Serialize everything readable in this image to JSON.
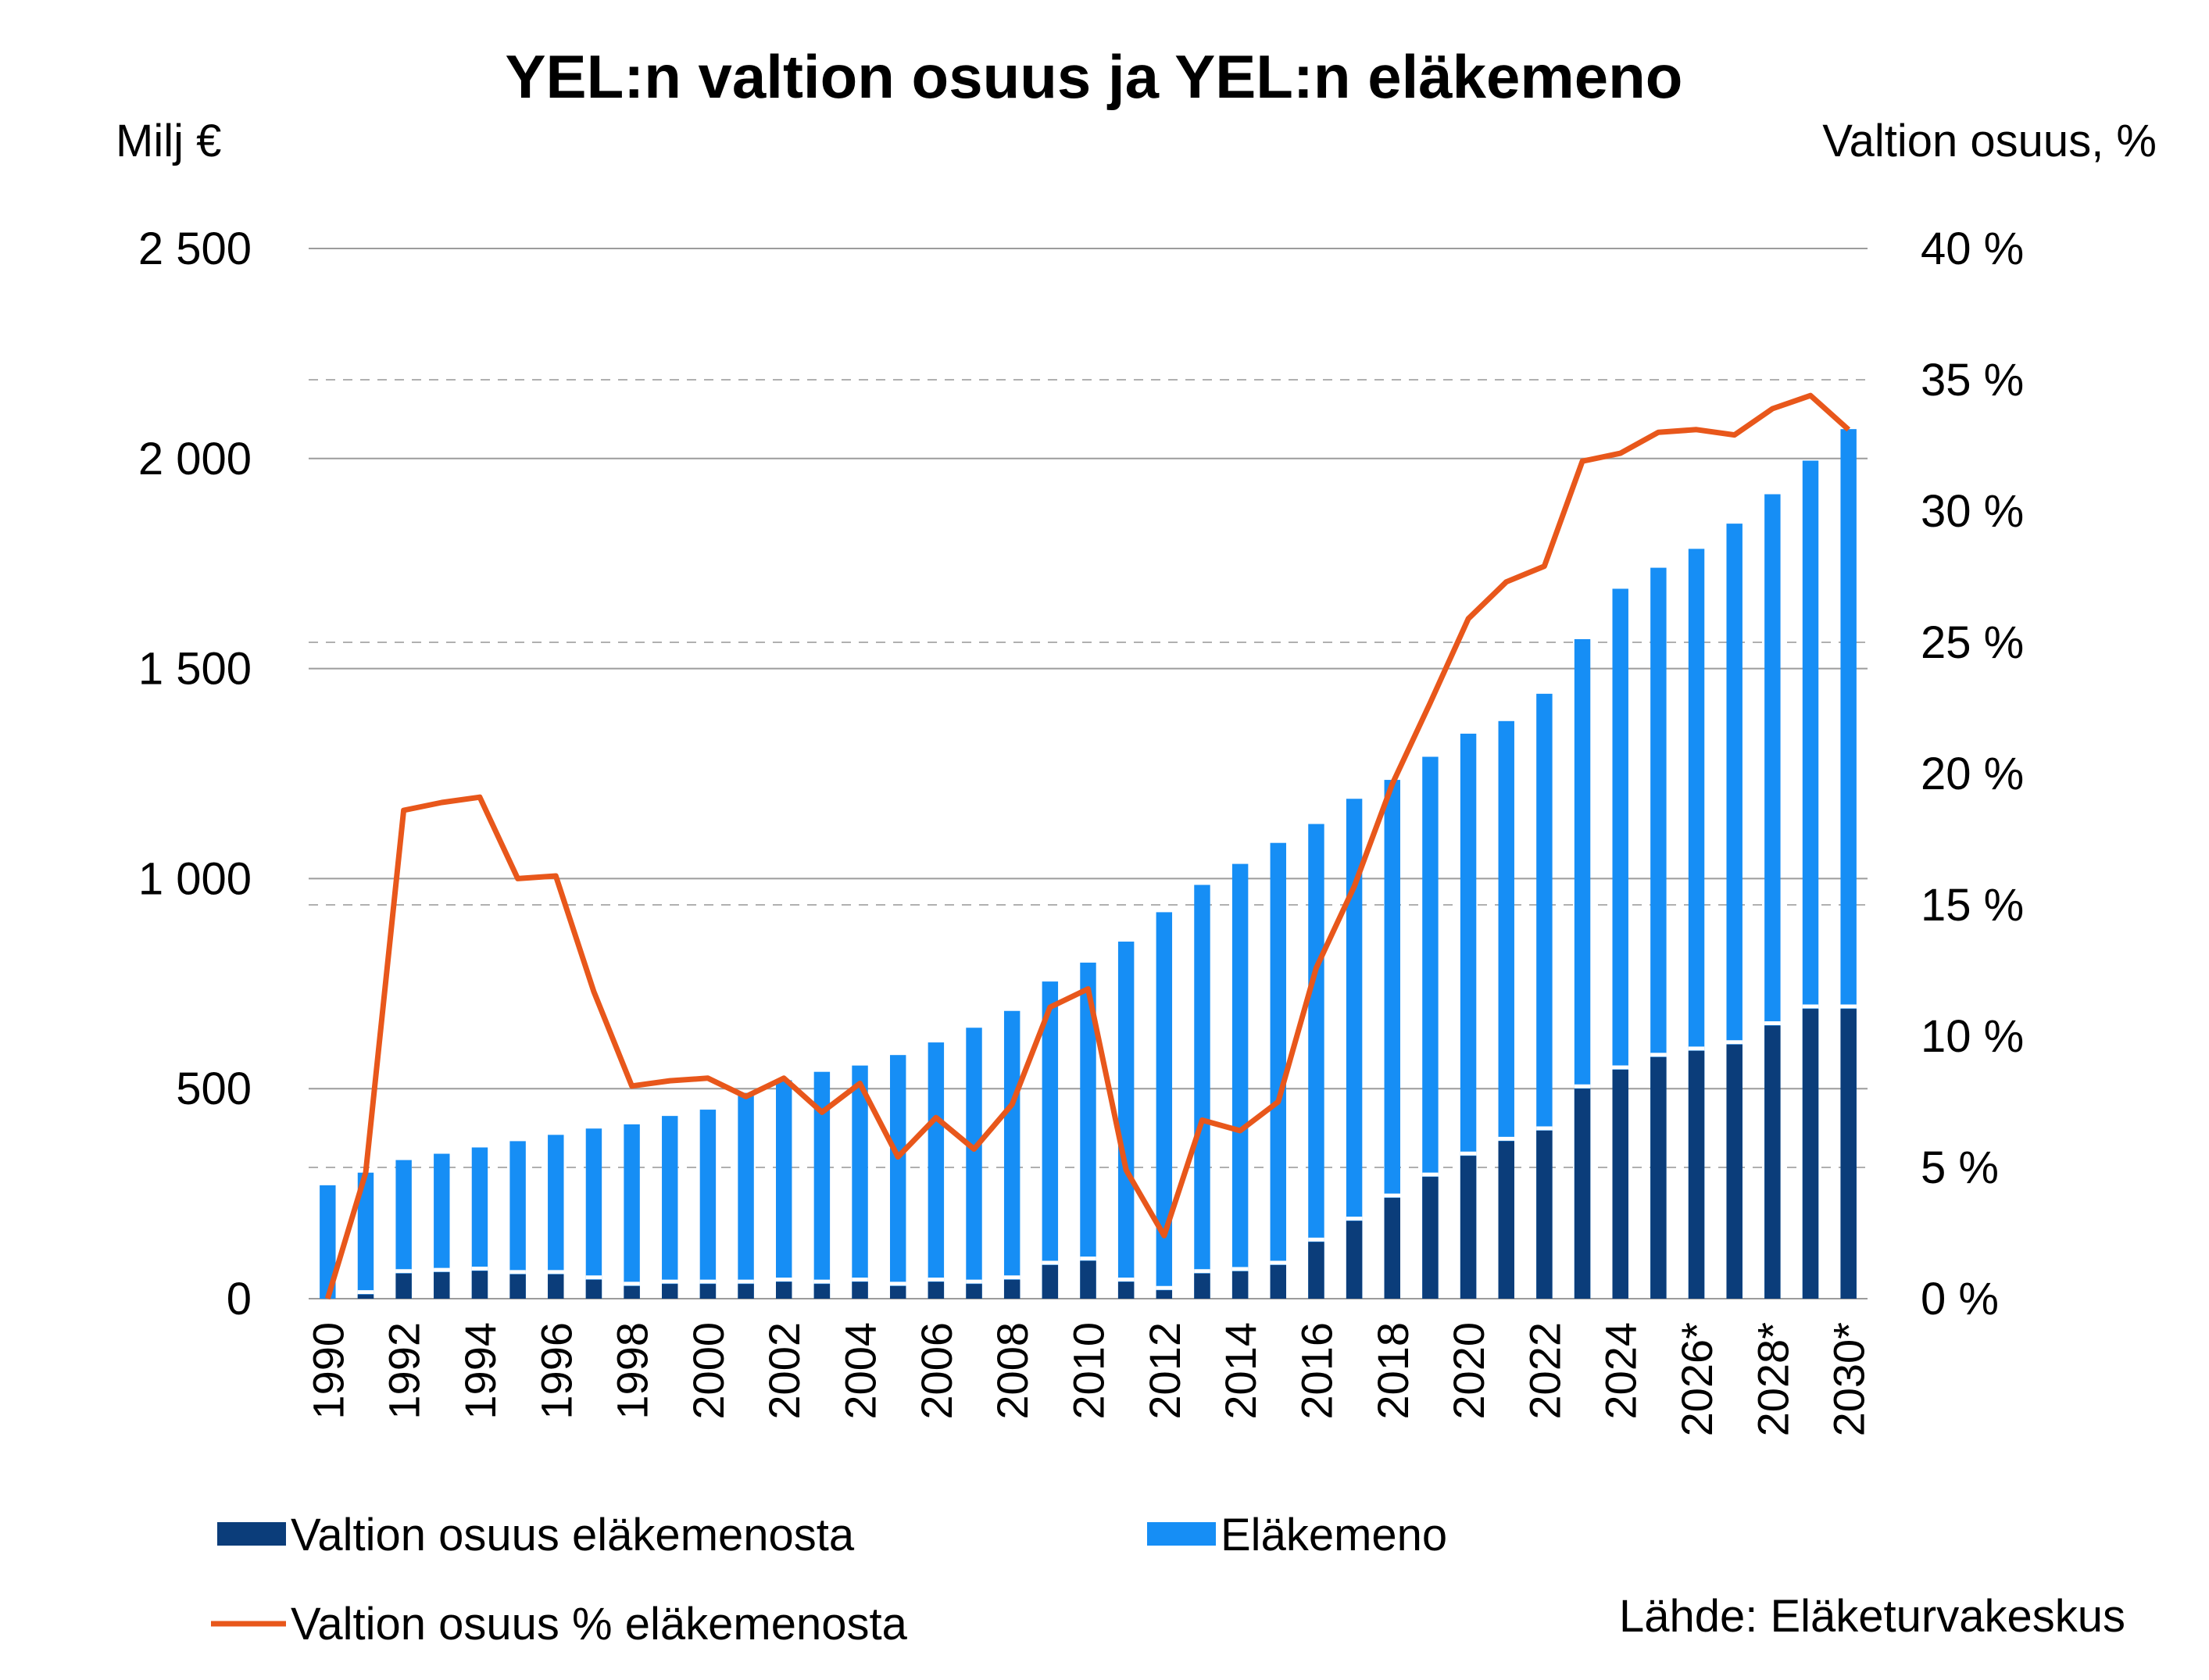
{
  "chart_data": {
    "type": "bar",
    "title": "YEL:n valtion osuus ja YEL:n eläkemeno",
    "ylabel": "Milj €",
    "y2label": "Valtion osuus, %",
    "ylim": [
      0,
      2500
    ],
    "y2lim": [
      0,
      40
    ],
    "yticks": [
      "0",
      "500",
      "1 000",
      "1 500",
      "2 000",
      "2 500"
    ],
    "y2ticks": [
      "0 %",
      "5 %",
      "10 %",
      "15 %",
      "20 %",
      "25 %",
      "30 %",
      "35 %",
      "40 %"
    ],
    "grid": true,
    "legend_position": "bottom",
    "source": "Lähde: Eläketurvakeskus",
    "x": [
      "1990",
      "1991",
      "1992",
      "1993",
      "1994",
      "1995",
      "1996",
      "1997",
      "1998",
      "1999",
      "2000",
      "2001",
      "2002",
      "2003",
      "2004",
      "2005",
      "2006",
      "2007",
      "2008",
      "2009",
      "2010",
      "2011",
      "2012",
      "2013",
      "2014",
      "2015",
      "2016",
      "2017",
      "2018",
      "2019",
      "2020",
      "2021",
      "2022",
      "2023",
      "2024",
      "2025",
      "2026*",
      "2027*",
      "2028*",
      "2029*",
      "2030*"
    ],
    "xtick_labels": [
      "1990",
      "1992",
      "1994",
      "1996",
      "1998",
      "2000",
      "2002",
      "2004",
      "2006",
      "2008",
      "2010",
      "2012",
      "2014",
      "2016",
      "2018",
      "2020",
      "2022",
      "2024",
      "2026*",
      "2028*",
      "2030*"
    ],
    "series": [
      {
        "name": "Valtion osuus eläkemenosta",
        "kind": "bar",
        "axis": "left",
        "color": "#0b3d7a",
        "values": [
          0,
          10,
          60,
          63,
          66,
          58,
          58,
          45,
          30,
          35,
          35,
          35,
          40,
          35,
          40,
          30,
          40,
          35,
          45,
          80,
          90,
          40,
          20,
          60,
          65,
          80,
          135,
          185,
          240,
          290,
          340,
          375,
          400,
          500,
          545,
          575,
          590,
          605,
          650,
          690,
          690
        ]
      },
      {
        "name": "Eläkemeno",
        "kind": "bar",
        "axis": "left",
        "color": "#168ef5",
        "values": [
          270,
          300,
          330,
          345,
          360,
          375,
          390,
          405,
          415,
          435,
          450,
          490,
          520,
          540,
          555,
          580,
          610,
          645,
          685,
          755,
          800,
          850,
          920,
          985,
          1035,
          1085,
          1130,
          1190,
          1235,
          1290,
          1345,
          1375,
          1440,
          1570,
          1690,
          1740,
          1785,
          1845,
          1915,
          1995,
          2070
        ]
      },
      {
        "name": "Valtion osuus % eläkemenosta",
        "kind": "line",
        "axis": "right",
        "color": "#e8571b",
        "values": [
          0,
          4.8,
          18.6,
          18.9,
          19.1,
          16.0,
          16.1,
          11.7,
          8.1,
          8.3,
          8.4,
          7.7,
          8.4,
          7.1,
          8.2,
          5.4,
          6.9,
          5.7,
          7.4,
          11.1,
          11.8,
          4.9,
          2.4,
          6.8,
          6.4,
          7.5,
          12.6,
          15.7,
          19.6,
          22.7,
          25.9,
          27.3,
          27.9,
          31.9,
          32.2,
          33.0,
          33.1,
          32.9,
          33.9,
          34.4,
          33.1
        ]
      }
    ]
  }
}
